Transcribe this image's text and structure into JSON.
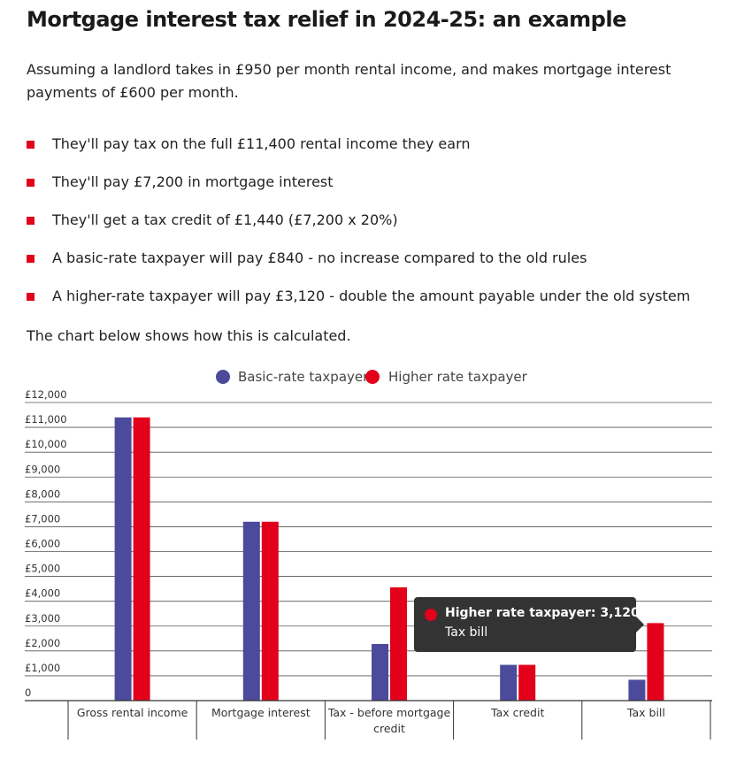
{
  "title": "Mortgage interest tax relief in 2024-25: an example",
  "intro": "Assuming a landlord takes in £950 per month rental income, and makes mortgage interest payments of £600 per month.",
  "bullets": [
    "They'll pay tax on the full £11,400 rental income they earn",
    "They'll pay £7,200 in mortgage interest",
    "They'll get a tax credit of £1,440 (£7,200 x 20%)",
    "A basic-rate taxpayer will pay £840 - no increase compared to the old rules",
    "A higher-rate taxpayer will pay £3,120 - double the amount payable under the old system"
  ],
  "outro": "The chart below shows how this is calculated.",
  "colors": {
    "accent": "#e2001a",
    "basic": "#4b4a9b",
    "higher": "#e2001a",
    "tooltip_bg": "#333333"
  },
  "chart_data": {
    "type": "bar",
    "categories": [
      "Gross rental income",
      "Mortgage interest",
      "Tax - before mortgage credit",
      "Tax credit",
      "Tax bill"
    ],
    "series": [
      {
        "name": "Basic-rate taxpayer",
        "color": "#4b4a9b",
        "values": [
          11400,
          7200,
          2280,
          1440,
          840
        ]
      },
      {
        "name": "Higher rate taxpayer",
        "color": "#e2001a",
        "values": [
          11400,
          7200,
          4560,
          1440,
          3120
        ]
      }
    ],
    "yticks": [
      "0",
      "£1,000",
      "£2,000",
      "£3,000",
      "£4,000",
      "£5,000",
      "£6,000",
      "£7,000",
      "£8,000",
      "£9,000",
      "£10,000",
      "£11,000",
      "£12,000"
    ],
    "ylim": [
      0,
      12000
    ],
    "legend": "top-center",
    "grid": true
  },
  "tooltip": {
    "title": "Higher rate taxpayer: 3,120",
    "subtitle": "Tax bill"
  }
}
